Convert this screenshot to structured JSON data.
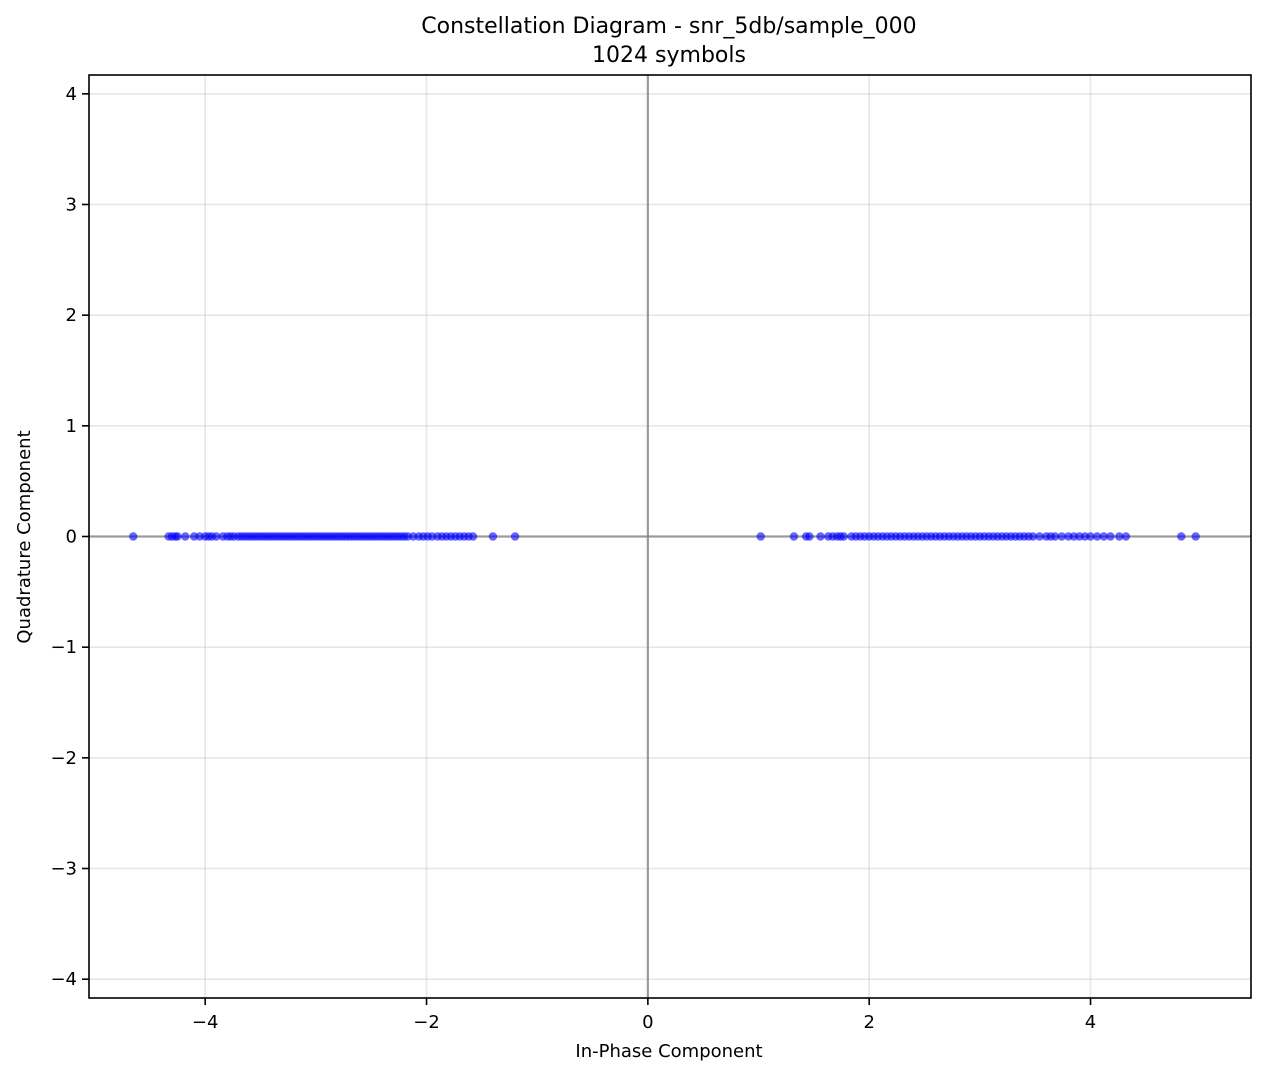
{
  "chart_data": {
    "type": "scatter",
    "title": "Constellation Diagram - snr_5db/sample_000",
    "subtitle": "1024 symbols",
    "xlabel": "In-Phase Component",
    "ylabel": "Quadrature Component",
    "xlim": [
      -5.05,
      5.45
    ],
    "ylim": [
      -4.17,
      4.17
    ],
    "xticks": [
      -4,
      -2,
      0,
      2,
      4
    ],
    "yticks": [
      -4,
      -3,
      -2,
      -1,
      0,
      1,
      2,
      3,
      4
    ],
    "xtick_labels": [
      "−4",
      "−2",
      "0",
      "2",
      "4"
    ],
    "ytick_labels": [
      "−4",
      "−3",
      "−2",
      "−1",
      "0",
      "1",
      "2",
      "3",
      "4"
    ],
    "grid": true,
    "point_color": "#0000ff",
    "series": [
      {
        "x": [
          -4.65,
          -4.33,
          -4.3,
          -4.27,
          -4.25,
          -4.18,
          -4.1,
          -4.05,
          -4.0,
          -3.97,
          -3.94,
          -3.9,
          -3.84,
          -3.8,
          -3.77,
          -3.74,
          -3.7,
          -3.67,
          -3.64,
          -3.61,
          -3.58,
          -3.55,
          -3.52,
          -3.49,
          -3.46,
          -3.43,
          -3.4,
          -3.37,
          -3.34,
          -3.31,
          -3.28,
          -3.25,
          -3.22,
          -3.19,
          -3.16,
          -3.13,
          -3.1,
          -3.07,
          -3.04,
          -3.01,
          -2.98,
          -2.95,
          -2.92,
          -2.89,
          -2.86,
          -2.83,
          -2.8,
          -2.77,
          -2.74,
          -2.71,
          -2.68,
          -2.65,
          -2.62,
          -2.59,
          -2.56,
          -2.53,
          -2.5,
          -2.47,
          -2.44,
          -2.41,
          -2.38,
          -2.35,
          -2.32,
          -2.29,
          -2.26,
          -2.23,
          -2.2,
          -2.17,
          -2.12,
          -2.07,
          -2.03,
          -1.99,
          -1.95,
          -1.9,
          -1.86,
          -1.82,
          -1.78,
          -1.74,
          -1.7,
          -1.66,
          -1.62,
          -1.58,
          -1.4,
          -1.2
        ],
        "y": [
          0,
          0,
          0,
          0,
          0,
          0,
          0,
          0,
          0,
          0,
          0,
          0,
          0,
          0,
          0,
          0,
          0,
          0,
          0,
          0,
          0,
          0,
          0,
          0,
          0,
          0,
          0,
          0,
          0,
          0,
          0,
          0,
          0,
          0,
          0,
          0,
          0,
          0,
          0,
          0,
          0,
          0,
          0,
          0,
          0,
          0,
          0,
          0,
          0,
          0,
          0,
          0,
          0,
          0,
          0,
          0,
          0,
          0,
          0,
          0,
          0,
          0,
          0,
          0,
          0,
          0,
          0,
          0,
          0,
          0,
          0,
          0,
          0,
          0,
          0,
          0,
          0,
          0,
          0,
          0,
          0,
          0,
          0,
          0
        ]
      },
      {
        "x": [
          1.02,
          1.32,
          1.43,
          1.46,
          1.56,
          1.63,
          1.67,
          1.71,
          1.74,
          1.77,
          1.84,
          1.88,
          1.92,
          1.96,
          2.0,
          2.04,
          2.08,
          2.12,
          2.16,
          2.2,
          2.24,
          2.28,
          2.32,
          2.36,
          2.4,
          2.44,
          2.48,
          2.52,
          2.56,
          2.6,
          2.64,
          2.68,
          2.72,
          2.76,
          2.8,
          2.84,
          2.88,
          2.92,
          2.96,
          3.0,
          3.04,
          3.08,
          3.12,
          3.16,
          3.2,
          3.24,
          3.28,
          3.32,
          3.36,
          3.4,
          3.44,
          3.48,
          3.54,
          3.6,
          3.64,
          3.68,
          3.74,
          3.8,
          3.85,
          3.9,
          3.95,
          4.0,
          4.06,
          4.12,
          4.18,
          4.26,
          4.32,
          4.82,
          4.95
        ],
        "y": [
          0,
          0,
          0,
          0,
          0,
          0,
          0,
          0,
          0,
          0,
          0,
          0,
          0,
          0,
          0,
          0,
          0,
          0,
          0,
          0,
          0,
          0,
          0,
          0,
          0,
          0,
          0,
          0,
          0,
          0,
          0,
          0,
          0,
          0,
          0,
          0,
          0,
          0,
          0,
          0,
          0,
          0,
          0,
          0,
          0,
          0,
          0,
          0,
          0,
          0,
          0,
          0,
          0,
          0,
          0,
          0,
          0,
          0,
          0,
          0,
          0,
          0,
          0,
          0,
          0,
          0,
          0,
          0,
          0
        ]
      }
    ]
  }
}
